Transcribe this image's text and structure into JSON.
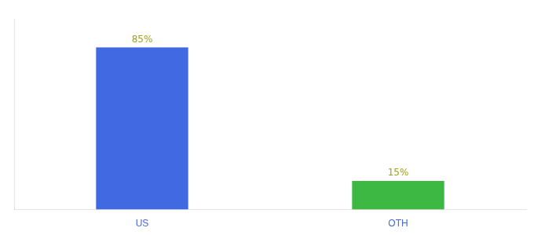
{
  "chart_data": {
    "type": "bar",
    "categories": [
      "US",
      "OTH"
    ],
    "values": [
      85,
      15
    ],
    "colors": [
      "#4169e1",
      "#3cb843"
    ],
    "ylim": [
      0,
      100
    ],
    "grid": false,
    "legend": false,
    "tick_labels": "x",
    "data_labels": true,
    "value_labels": [
      "85%",
      "15%"
    ]
  }
}
